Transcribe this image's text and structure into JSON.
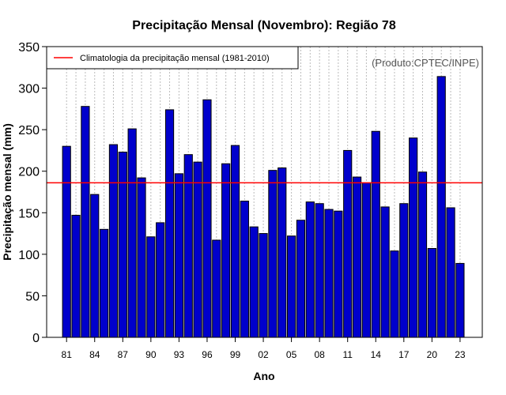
{
  "chart_data": {
    "type": "bar",
    "title": "Precipitação Mensal (Novembro): Região 78",
    "xlabel": "Ano",
    "ylabel": "Precipitação mensal (mm)",
    "ylim": [
      0,
      350
    ],
    "yticks": [
      0,
      50,
      100,
      150,
      200,
      250,
      300,
      350
    ],
    "grid": "vertical dotted",
    "legend": {
      "position": "top-left",
      "entries": [
        "Climatologia da precipitação mensal (1981-2010)"
      ]
    },
    "source_note": "(Produto:CPTEC/INPE)",
    "years": [
      "81",
      "82",
      "83",
      "84",
      "85",
      "86",
      "87",
      "88",
      "89",
      "90",
      "91",
      "92",
      "93",
      "94",
      "95",
      "96",
      "97",
      "98",
      "99",
      "00",
      "01",
      "02",
      "03",
      "04",
      "05",
      "06",
      "07",
      "08",
      "09",
      "10",
      "11",
      "12",
      "13",
      "14",
      "15",
      "16",
      "17",
      "18",
      "19",
      "20",
      "21",
      "22",
      "23"
    ],
    "xtick_labels": [
      "81",
      "84",
      "87",
      "90",
      "93",
      "96",
      "99",
      "02",
      "05",
      "08",
      "11",
      "14",
      "17",
      "20",
      "23"
    ],
    "values": [
      230,
      147,
      278,
      172,
      130,
      232,
      223,
      251,
      192,
      121,
      138,
      274,
      197,
      220,
      211,
      286,
      117,
      209,
      231,
      164,
      133,
      125,
      201,
      204,
      122,
      141,
      163,
      161,
      154,
      152,
      225,
      193,
      186,
      248,
      157,
      104,
      161,
      240,
      199,
      107,
      314,
      156,
      89
    ],
    "climatology": 186,
    "colors": {
      "bar": "#0000CC",
      "bar_edge": "#000000",
      "climatology_line": "#FF0000",
      "grid": "#BBBBBB"
    }
  }
}
